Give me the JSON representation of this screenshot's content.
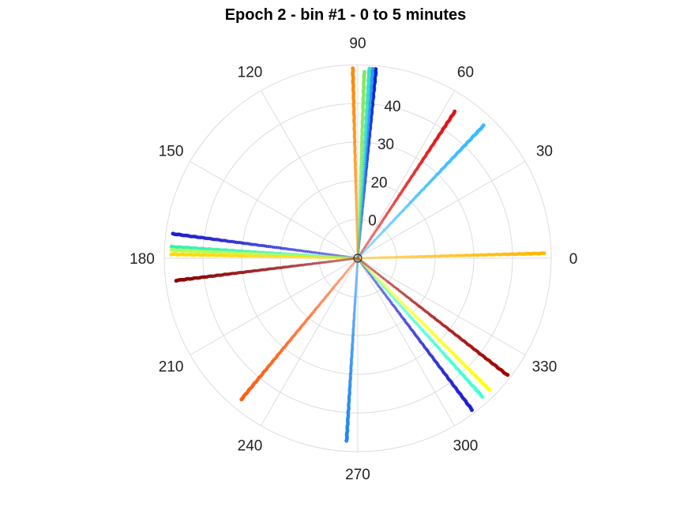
{
  "chart_data": {
    "type": "scatter",
    "projection": "polar",
    "title": "Epoch 2 - bin #1 - 0 to 5 minutes",
    "angular_axis": {
      "ticks": [
        0,
        30,
        60,
        90,
        120,
        150,
        180,
        210,
        240,
        270,
        300,
        330
      ],
      "unit": "degrees",
      "direction": "counterclockwise",
      "zero_at": "right"
    },
    "radial_axis": {
      "tick_labels": [
        "0",
        "20",
        "30",
        "40"
      ],
      "range": [
        -10,
        45
      ],
      "label_angle_deg": 80
    },
    "grid": true,
    "legend": "none",
    "series": [
      {
        "theta": 84.5,
        "r_start": -10,
        "r_end": 44,
        "color": "#0022cc"
      },
      {
        "theta": 85.5,
        "r_start": -10,
        "r_end": 44,
        "color": "#2e8fff"
      },
      {
        "theta": 86.5,
        "r_start": -10,
        "r_end": 44,
        "color": "#33e0c0"
      },
      {
        "theta": 88.0,
        "r_start": -10,
        "r_end": 43,
        "color": "#7ce858"
      },
      {
        "theta": 91.5,
        "r_start": -10,
        "r_end": 44,
        "color": "#ff8800"
      },
      {
        "theta": 56.5,
        "r_start": -10,
        "r_end": 40,
        "color": "#e01010"
      },
      {
        "theta": 46.5,
        "r_start": -10,
        "r_end": 42,
        "color": "#33b8ff"
      },
      {
        "theta": 1.5,
        "r_start": -10,
        "r_end": 43,
        "color": "#ffb800"
      },
      {
        "theta": 172.5,
        "r_start": -10,
        "r_end": 43,
        "color": "#1a1ad0"
      },
      {
        "theta": 176.5,
        "r_start": -10,
        "r_end": 43,
        "color": "#33f0b0"
      },
      {
        "theta": 177.5,
        "r_start": -10,
        "r_end": 43,
        "color": "#b0ff50"
      },
      {
        "theta": 178.8,
        "r_start": -10,
        "r_end": 43,
        "color": "#ffd800"
      },
      {
        "theta": 187.0,
        "r_start": -10,
        "r_end": 42,
        "color": "#8b0000"
      },
      {
        "theta": 230.5,
        "r_start": -10,
        "r_end": 42,
        "color": "#ff5a10"
      },
      {
        "theta": 266.5,
        "r_start": -10,
        "r_end": 42,
        "color": "#1c86ee"
      },
      {
        "theta": 307.0,
        "r_start": -10,
        "r_end": 44,
        "color": "#1a1acc"
      },
      {
        "theta": 312.0,
        "r_start": -10,
        "r_end": 43,
        "color": "#40ffd0"
      },
      {
        "theta": 315.0,
        "r_start": -10,
        "r_end": 43,
        "color": "#ffff10"
      },
      {
        "theta": 322.0,
        "r_start": -10,
        "r_end": 44,
        "color": "#a00000"
      }
    ]
  }
}
